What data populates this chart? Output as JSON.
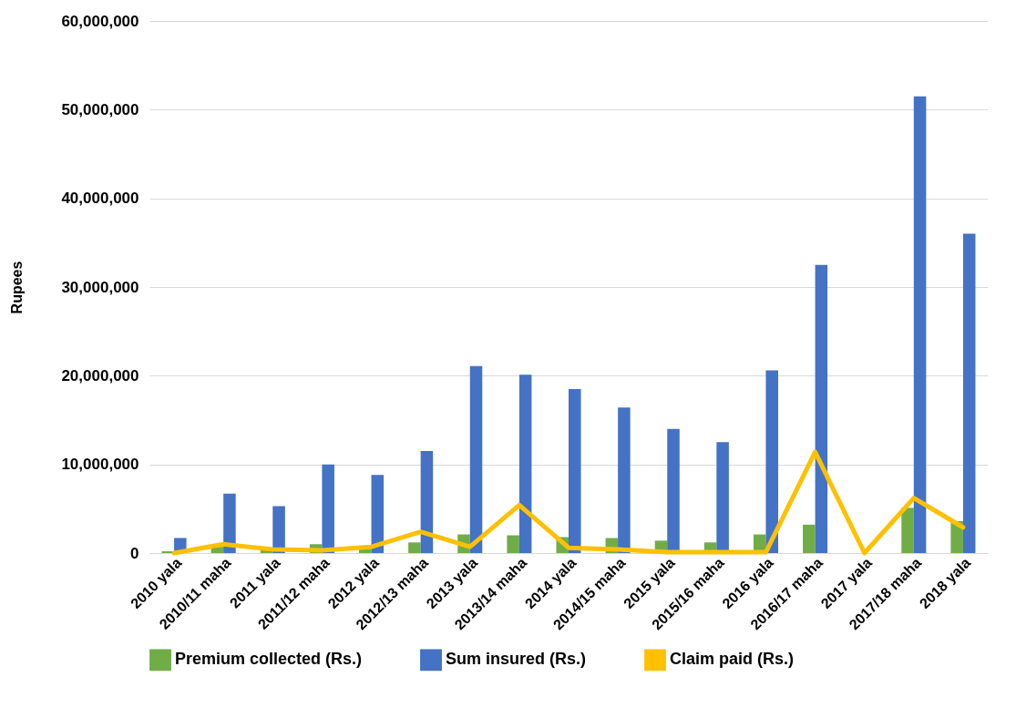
{
  "chart_data": {
    "type": "bar",
    "ylabel": "Rupees",
    "categories": [
      "2010 yala",
      "2010/11 maha",
      "2011 yala",
      "2011/12 maha",
      "2012 yala",
      "2012/13 maha",
      "2013 yala",
      "2013/14 maha",
      "2014 yala",
      "2014/15 maha",
      "2015 yala",
      "2015/16 maha",
      "2016 yala",
      "2016/17 maha",
      "2017 yala",
      "2017/18 maha",
      "2018 yala"
    ],
    "series": [
      {
        "name": "Premium collected (Rs.)",
        "color": "#70ad47",
        "values": [
          200000,
          700000,
          300000,
          1000000,
          500000,
          1200000,
          2100000,
          2000000,
          1800000,
          1700000,
          1400000,
          1200000,
          2100000,
          3200000,
          0,
          5100000,
          3600000
        ]
      },
      {
        "name": "Sum insured (Rs.)",
        "color": "#4472c4",
        "values": [
          1700000,
          6700000,
          5300000,
          10000000,
          8800000,
          11500000,
          21100000,
          20100000,
          18500000,
          16400000,
          14000000,
          12500000,
          20600000,
          32500000,
          0,
          51500000,
          36000000
        ]
      },
      {
        "name": "Claim paid (Rs.)",
        "type": "line",
        "color": "#ffc000",
        "values": [
          0,
          1000000,
          400000,
          300000,
          700000,
          2400000,
          700000,
          5400000,
          600000,
          400000,
          100000,
          100000,
          100000,
          11400000,
          0,
          6200000,
          2900000
        ]
      }
    ],
    "ylim": [
      0,
      60000000
    ],
    "yticks": [
      0,
      {
        "value": 10000000,
        "label": "10,000,000"
      },
      {
        "value": 20000000,
        "label": "20,000,000"
      },
      {
        "value": 30000000,
        "label": "30,000,000"
      },
      {
        "value": 40000000,
        "label": "40,000,000"
      },
      {
        "value": 50000000,
        "label": "50,000,000"
      },
      {
        "value": 60000000,
        "label": "60,000,000"
      }
    ],
    "grid": "y",
    "legend": "bottom",
    "marker": "none"
  }
}
